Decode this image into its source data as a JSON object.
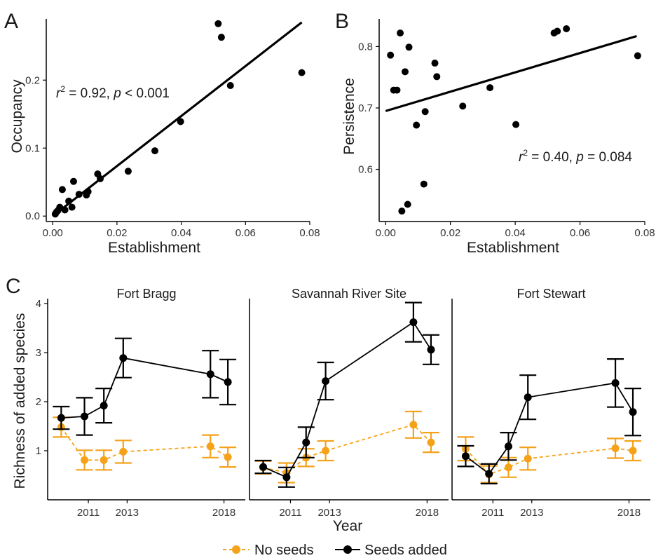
{
  "colors": {
    "points": "#000000",
    "seeds_added": "#000000",
    "no_seeds": "#f5a21b"
  },
  "chart_data": [
    {
      "panel": "A",
      "type": "scatter",
      "xlabel": "Establishment",
      "ylabel": "Occupancy",
      "xlim": [
        -0.002,
        0.08
      ],
      "ylim": [
        -0.008,
        0.29
      ],
      "xticks": [
        "0.00",
        "0.02",
        "0.04",
        "0.06",
        "0.08"
      ],
      "yticks": [
        "0.0",
        "0.1",
        "0.2"
      ],
      "annotation": {
        "r2_label": "r",
        "r2_sup": "2",
        "r2_value": " = 0.92, ",
        "p_label": "p",
        "p_value": " < 0.001"
      },
      "fit": {
        "x": [
          0.0,
          0.0775
        ],
        "y": [
          0.0,
          0.285
        ]
      },
      "points": [
        {
          "x": 0.0008,
          "y": 0.003
        },
        {
          "x": 0.0012,
          "y": 0.006
        },
        {
          "x": 0.0016,
          "y": 0.008
        },
        {
          "x": 0.0022,
          "y": 0.013
        },
        {
          "x": 0.003,
          "y": 0.039
        },
        {
          "x": 0.0038,
          "y": 0.009
        },
        {
          "x": 0.005,
          "y": 0.022
        },
        {
          "x": 0.006,
          "y": 0.013
        },
        {
          "x": 0.0065,
          "y": 0.051
        },
        {
          "x": 0.0082,
          "y": 0.032
        },
        {
          "x": 0.0105,
          "y": 0.031
        },
        {
          "x": 0.011,
          "y": 0.036
        },
        {
          "x": 0.014,
          "y": 0.062
        },
        {
          "x": 0.0148,
          "y": 0.055
        },
        {
          "x": 0.0235,
          "y": 0.066
        },
        {
          "x": 0.0318,
          "y": 0.096
        },
        {
          "x": 0.0398,
          "y": 0.139
        },
        {
          "x": 0.0515,
          "y": 0.283
        },
        {
          "x": 0.0525,
          "y": 0.263
        },
        {
          "x": 0.0553,
          "y": 0.192
        },
        {
          "x": 0.0775,
          "y": 0.211
        }
      ]
    },
    {
      "panel": "B",
      "type": "scatter",
      "xlabel": "Establishment",
      "ylabel": "Persistence",
      "xlim": [
        -0.002,
        0.08
      ],
      "ylim": [
        0.515,
        0.845
      ],
      "xticks": [
        "0.00",
        "0.02",
        "0.04",
        "0.06",
        "0.08"
      ],
      "yticks": [
        "0.6",
        "0.7",
        "0.8"
      ],
      "annotation": {
        "r2_label": "r",
        "r2_sup": "2",
        "r2_value": " = 0.40, ",
        "p_label": "p",
        "p_value": " = 0.084"
      },
      "fit": {
        "x": [
          0.0,
          0.0775
        ],
        "y": [
          0.695,
          0.817
        ]
      },
      "points": [
        {
          "x": 0.0015,
          "y": 0.786
        },
        {
          "x": 0.0025,
          "y": 0.729
        },
        {
          "x": 0.0035,
          "y": 0.729
        },
        {
          "x": 0.0045,
          "y": 0.822
        },
        {
          "x": 0.005,
          "y": 0.532
        },
        {
          "x": 0.006,
          "y": 0.759
        },
        {
          "x": 0.0068,
          "y": 0.543
        },
        {
          "x": 0.0072,
          "y": 0.799
        },
        {
          "x": 0.0095,
          "y": 0.672
        },
        {
          "x": 0.0118,
          "y": 0.576
        },
        {
          "x": 0.0122,
          "y": 0.694
        },
        {
          "x": 0.0152,
          "y": 0.773
        },
        {
          "x": 0.0158,
          "y": 0.751
        },
        {
          "x": 0.0238,
          "y": 0.703
        },
        {
          "x": 0.0322,
          "y": 0.733
        },
        {
          "x": 0.0402,
          "y": 0.673
        },
        {
          "x": 0.052,
          "y": 0.822
        },
        {
          "x": 0.053,
          "y": 0.825
        },
        {
          "x": 0.0558,
          "y": 0.829
        },
        {
          "x": 0.0778,
          "y": 0.785
        }
      ]
    },
    {
      "panel": "C",
      "type": "line",
      "xlabel": "Year",
      "ylabel": "Richness of added species",
      "xlim": [
        2008.9,
        2019.1
      ],
      "ylim": [
        0.0,
        4.1
      ],
      "xticks": [
        "2011",
        "2013",
        "2018"
      ],
      "yticks": [
        "1",
        "2",
        "3",
        "4"
      ],
      "legend": {
        "position": "bottom",
        "entries": [
          "No seeds",
          "Seeds added"
        ]
      },
      "facets": [
        {
          "title": "Fort Bragg",
          "series": [
            {
              "name": "Seeds added",
              "x": [
                2009.6,
                2010.8,
                2011.8,
                2012.8,
                2017.3,
                2018.2
              ],
              "y": [
                1.67,
                1.7,
                1.92,
                2.89,
                2.56,
                2.4
              ],
              "err": [
                0.23,
                0.38,
                0.35,
                0.4,
                0.48,
                0.46
              ]
            },
            {
              "name": "No seeds",
              "x": [
                2009.6,
                2010.8,
                2011.8,
                2012.8,
                2017.3,
                2018.2
              ],
              "y": [
                1.48,
                0.81,
                0.81,
                0.98,
                1.09,
                0.87
              ],
              "err": [
                0.2,
                0.2,
                0.2,
                0.23,
                0.23,
                0.2
              ]
            }
          ]
        },
        {
          "title": "Savannah River Site",
          "series": [
            {
              "name": "Seeds added",
              "x": [
                2009.6,
                2010.8,
                2011.8,
                2012.8,
                2017.3,
                2018.2
              ],
              "y": [
                0.67,
                0.46,
                1.17,
                2.42,
                3.62,
                3.06
              ],
              "err": [
                0.13,
                0.2,
                0.31,
                0.38,
                0.4,
                0.3
              ]
            },
            {
              "name": "No seeds",
              "x": [
                2009.6,
                2010.8,
                2011.8,
                2012.8,
                2017.3,
                2018.2
              ],
              "y": [
                0.66,
                0.55,
                0.86,
                1.0,
                1.53,
                1.17
              ],
              "err": [
                0.13,
                0.2,
                0.18,
                0.2,
                0.27,
                0.2
              ]
            }
          ]
        },
        {
          "title": "Fort Stewart",
          "series": [
            {
              "name": "Seeds added",
              "x": [
                2009.6,
                2010.8,
                2011.8,
                2012.8,
                2017.3,
                2018.2
              ],
              "y": [
                0.89,
                0.53,
                1.09,
                2.09,
                2.38,
                1.79
              ],
              "err": [
                0.21,
                0.2,
                0.28,
                0.45,
                0.49,
                0.48
              ]
            },
            {
              "name": "No seeds",
              "x": [
                2009.6,
                2010.8,
                2011.8,
                2012.8,
                2017.3,
                2018.2
              ],
              "y": [
                1.04,
                0.52,
                0.66,
                0.84,
                1.05,
                1.0
              ],
              "err": [
                0.24,
                0.17,
                0.2,
                0.23,
                0.2,
                0.2
              ]
            }
          ]
        }
      ]
    }
  ]
}
